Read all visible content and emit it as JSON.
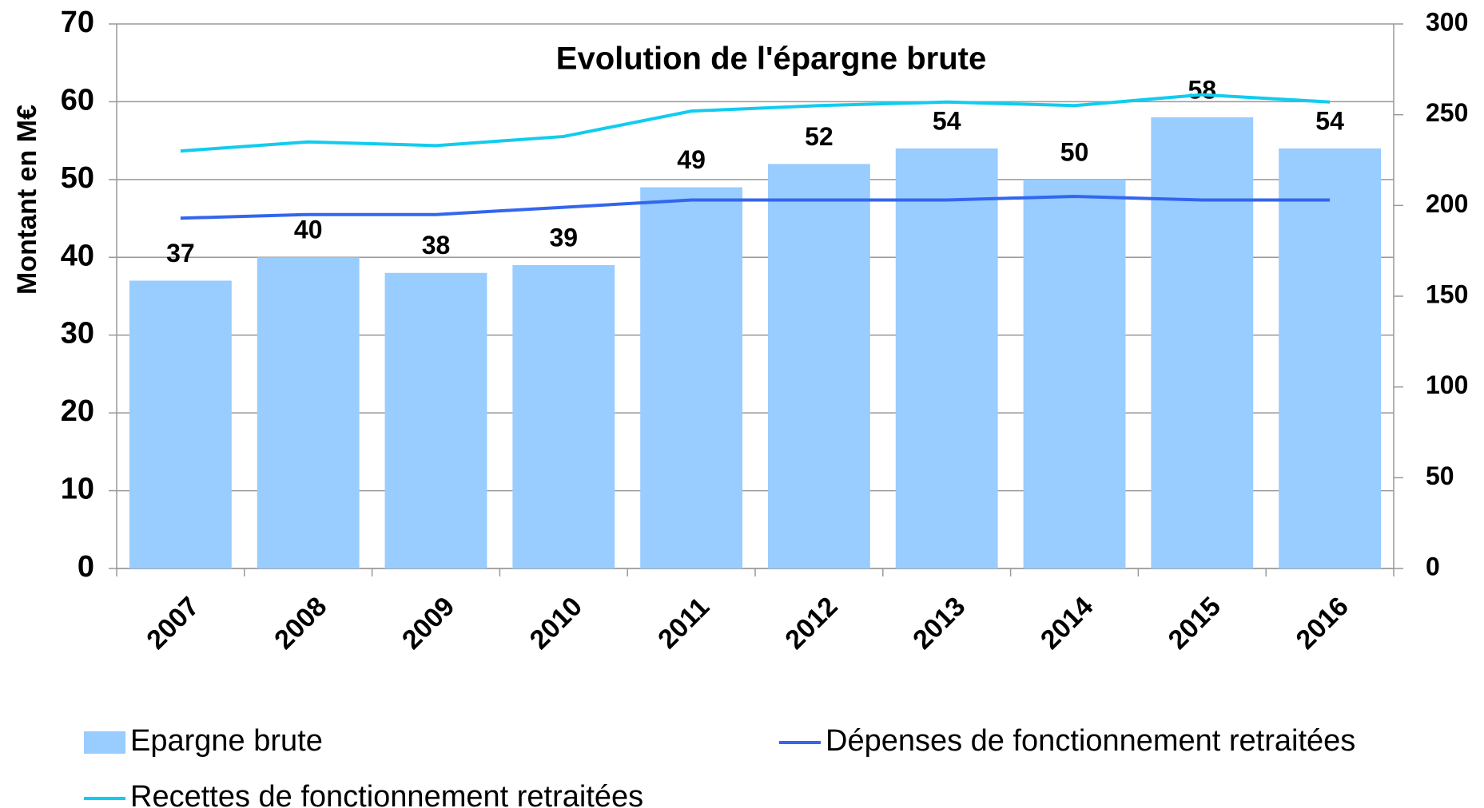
{
  "chart_data": {
    "type": "bar-line",
    "title": "Evolution de l'épargne brute",
    "y_label": "Montant en M€",
    "categories": [
      "2007",
      "2008",
      "2009",
      "2010",
      "2011",
      "2012",
      "2013",
      "2014",
      "2015",
      "2016"
    ],
    "series": [
      {
        "name": "Epargne brute",
        "type": "bar",
        "color": "#99ccff",
        "values": [
          37,
          40,
          38,
          39,
          49,
          52,
          54,
          50,
          58,
          54
        ]
      },
      {
        "name": "Dépenses  de fonctionnement retraitées",
        "type": "line",
        "axis": "y2",
        "color": "#3366ee",
        "values": [
          193,
          195,
          195,
          199,
          203,
          203,
          203,
          205,
          203,
          203
        ]
      },
      {
        "name": "Recettes de fonctionnement retraitées",
        "type": "line",
        "axis": "y2",
        "color": "#11ccee",
        "values": [
          230,
          235,
          233,
          238,
          252,
          255,
          257,
          255,
          261,
          257
        ]
      }
    ],
    "ylim": [
      0,
      70
    ],
    "yticks": [
      0,
      10,
      20,
      30,
      40,
      50,
      60,
      70
    ],
    "y2lim": [
      0,
      300
    ],
    "y2ticks": [
      0,
      50,
      100,
      150,
      200,
      250,
      300
    ],
    "grid": true,
    "legend": "bottom"
  }
}
